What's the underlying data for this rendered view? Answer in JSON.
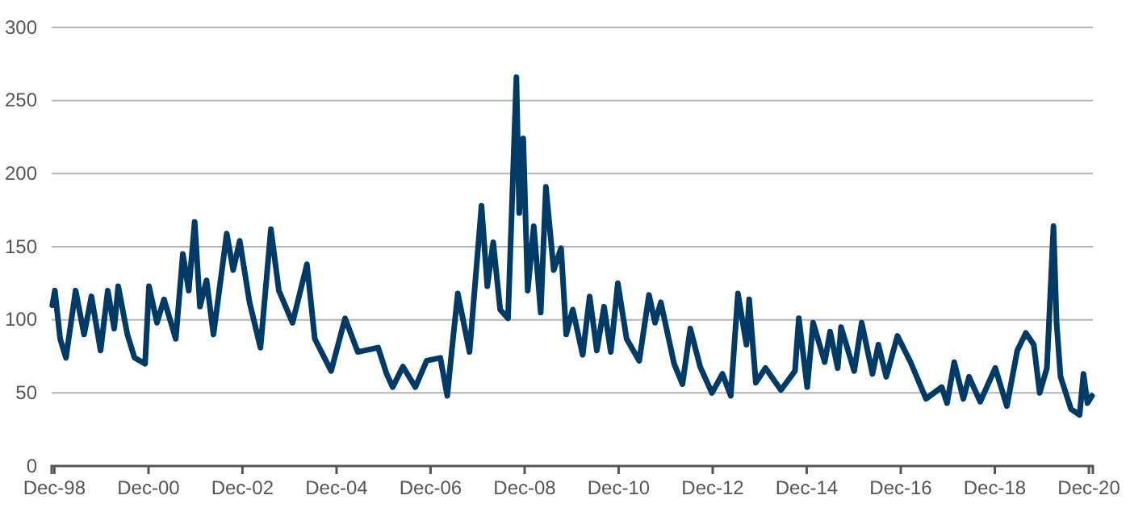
{
  "chart_data": {
    "type": "line",
    "xlim": [
      "1998-11-10",
      "2021-01-01"
    ],
    "ylim": [
      0,
      300
    ],
    "yticks": [
      0,
      50,
      100,
      150,
      200,
      250,
      300
    ],
    "xticks": [
      {
        "value": "1998-12-01",
        "label": "Dec-98"
      },
      {
        "value": "2000-12-01",
        "label": "Dec-00"
      },
      {
        "value": "2002-12-01",
        "label": "Dec-02"
      },
      {
        "value": "2004-12-01",
        "label": "Dec-04"
      },
      {
        "value": "2006-12-01",
        "label": "Dec-06"
      },
      {
        "value": "2008-12-01",
        "label": "Dec-08"
      },
      {
        "value": "2010-12-01",
        "label": "Dec-10"
      },
      {
        "value": "2012-12-01",
        "label": "Dec-12"
      },
      {
        "value": "2014-12-01",
        "label": "Dec-14"
      },
      {
        "value": "2016-12-01",
        "label": "Dec-16"
      },
      {
        "value": "2018-12-01",
        "label": "Dec-18"
      },
      {
        "value": "2020-12-01",
        "label": "Dec-20"
      }
    ],
    "grid": "y",
    "marker": "none",
    "line_style": "solid",
    "x": [
      "1998-11-15",
      "1998-12-05",
      "1999-01-15",
      "1999-03-01",
      "1999-05-15",
      "1999-07-20",
      "1999-09-15",
      "1999-11-25",
      "2000-01-20",
      "2000-03-10",
      "2000-04-10",
      "2000-06-20",
      "2000-08-15",
      "2000-11-05",
      "2000-12-05",
      "2001-02-05",
      "2001-04-01",
      "2001-07-01",
      "2001-08-25",
      "2001-10-10",
      "2001-11-25",
      "2002-01-05",
      "2002-02-25",
      "2002-04-20",
      "2002-08-01",
      "2002-09-20",
      "2002-11-10",
      "2003-01-25",
      "2003-04-20",
      "2003-07-10",
      "2003-09-10",
      "2003-12-25",
      "2004-04-15",
      "2004-06-15",
      "2004-10-20",
      "2005-02-05",
      "2005-05-15",
      "2005-10-20",
      "2005-12-25",
      "2006-02-10",
      "2006-05-01",
      "2006-08-05",
      "2006-11-01",
      "2007-02-15",
      "2007-04-10",
      "2007-05-20",
      "2007-07-01",
      "2007-09-30",
      "2008-01-01",
      "2008-02-15",
      "2008-04-01",
      "2008-05-25",
      "2008-07-25",
      "2008-09-28",
      "2008-10-20",
      "2008-11-20",
      "2008-12-25",
      "2009-02-10",
      "2009-04-05",
      "2009-05-15",
      "2009-07-15",
      "2009-09-10",
      "2009-10-20",
      "2009-12-10",
      "2010-02-25",
      "2010-04-20",
      "2010-06-15",
      "2010-08-10",
      "2010-10-01",
      "2010-11-25",
      "2011-02-01",
      "2011-05-10",
      "2011-07-25",
      "2011-09-10",
      "2011-10-25",
      "2012-02-05",
      "2012-04-10",
      "2012-06-10",
      "2012-08-25",
      "2012-11-25",
      "2013-02-15",
      "2013-04-20",
      "2013-06-15",
      "2013-08-20",
      "2013-09-10",
      "2013-11-01",
      "2014-01-15",
      "2014-05-15",
      "2014-09-01",
      "2014-10-01",
      "2014-12-05",
      "2015-01-20",
      "2015-04-20",
      "2015-06-01",
      "2015-07-30",
      "2015-08-25",
      "2015-12-05",
      "2016-02-01",
      "2016-04-25",
      "2016-06-10",
      "2016-08-10",
      "2016-11-05",
      "2017-02-15",
      "2017-06-15",
      "2017-10-15",
      "2017-11-25",
      "2018-01-20",
      "2018-04-01",
      "2018-05-15",
      "2018-08-10",
      "2018-12-05",
      "2019-03-05",
      "2019-05-25",
      "2019-07-30",
      "2019-09-30",
      "2019-11-15",
      "2020-01-10",
      "2020-03-01",
      "2020-03-25",
      "2020-04-25",
      "2020-07-15",
      "2020-09-20",
      "2020-10-20",
      "2020-11-20",
      "2020-12-25"
    ],
    "series": [
      {
        "color": "#003a66",
        "values": [
          110,
          120,
          87,
          74,
          120,
          90,
          116,
          79,
          120,
          94,
          123,
          90,
          74,
          70,
          123,
          98,
          114,
          87,
          145,
          120,
          167,
          109,
          127,
          90,
          159,
          134,
          154,
          112,
          81,
          162,
          120,
          98,
          138,
          87,
          65,
          101,
          78,
          81,
          63,
          54,
          68,
          54,
          72,
          74,
          48,
          83,
          118,
          78,
          178,
          123,
          153,
          107,
          101,
          266,
          173,
          224,
          120,
          164,
          105,
          191,
          134,
          149,
          90,
          107,
          76,
          116,
          79,
          109,
          78,
          125,
          87,
          72,
          117,
          98,
          112,
          70,
          56,
          94,
          68,
          50,
          63,
          48,
          118,
          83,
          114,
          57,
          67,
          52,
          65,
          101,
          54,
          98,
          71,
          92,
          67,
          95,
          65,
          98,
          63,
          83,
          61,
          89,
          71,
          46,
          54,
          43,
          71,
          46,
          61,
          44,
          67,
          41,
          79,
          91,
          83,
          50,
          67,
          164,
          98,
          61,
          39,
          35,
          63,
          43,
          48
        ]
      }
    ]
  }
}
